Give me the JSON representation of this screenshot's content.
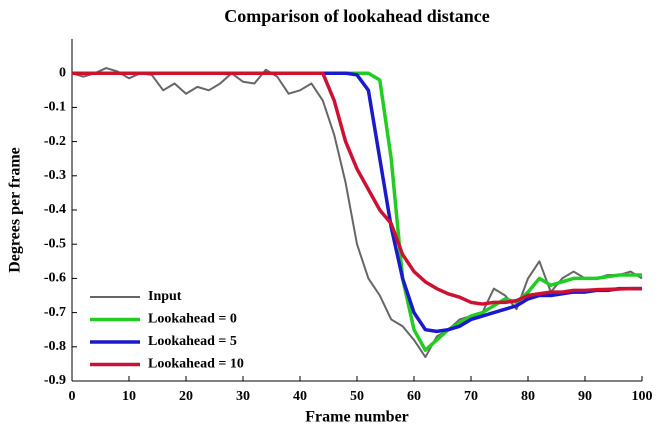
{
  "chart_data": {
    "type": "line",
    "title": "Comparison of lookahead distance",
    "xlabel": "Frame number",
    "ylabel": "Degrees per frame",
    "x": [
      0,
      2,
      4,
      6,
      8,
      10,
      12,
      14,
      16,
      18,
      20,
      22,
      24,
      26,
      28,
      30,
      32,
      34,
      36,
      38,
      40,
      42,
      44,
      46,
      48,
      50,
      52,
      54,
      56,
      58,
      60,
      62,
      64,
      66,
      68,
      70,
      72,
      74,
      76,
      78,
      80,
      82,
      84,
      86,
      88,
      90,
      92,
      94,
      96,
      98,
      100
    ],
    "series": [
      {
        "name": "Input",
        "color": "#666666",
        "values": [
          0,
          -0.01,
          0,
          0.015,
          0.005,
          -0.015,
          0,
          -0.005,
          -0.05,
          -0.03,
          -0.06,
          -0.04,
          -0.05,
          -0.03,
          0,
          -0.025,
          -0.03,
          0.01,
          -0.01,
          -0.06,
          -0.05,
          -0.03,
          -0.08,
          -0.18,
          -0.32,
          -0.5,
          -0.6,
          -0.65,
          -0.72,
          -0.74,
          -0.78,
          -0.83,
          -0.77,
          -0.75,
          -0.72,
          -0.71,
          -0.7,
          -0.63,
          -0.65,
          -0.69,
          -0.6,
          -0.55,
          -0.64,
          -0.6,
          -0.58,
          -0.6,
          -0.6,
          -0.59,
          -0.59,
          -0.58,
          -0.6
        ]
      },
      {
        "name": "Lookahead = 0",
        "color": "#22cc22",
        "values": [
          0,
          0,
          0,
          0,
          0,
          0,
          0,
          0,
          0,
          0,
          0,
          0,
          0,
          0,
          0,
          0,
          0,
          0,
          0,
          0,
          0,
          0,
          0,
          0,
          0,
          0,
          0,
          -0.02,
          -0.25,
          -0.6,
          -0.75,
          -0.81,
          -0.78,
          -0.75,
          -0.73,
          -0.71,
          -0.7,
          -0.68,
          -0.66,
          -0.67,
          -0.64,
          -0.6,
          -0.62,
          -0.61,
          -0.6,
          -0.6,
          -0.6,
          -0.595,
          -0.59,
          -0.59,
          -0.59
        ]
      },
      {
        "name": "Lookahead = 5",
        "color": "#1a1acc",
        "values": [
          0,
          0,
          0,
          0,
          0,
          0,
          0,
          0,
          0,
          0,
          0,
          0,
          0,
          0,
          0,
          0,
          0,
          0,
          0,
          0,
          0,
          0,
          0,
          0,
          0,
          -0.005,
          -0.05,
          -0.25,
          -0.45,
          -0.6,
          -0.7,
          -0.75,
          -0.755,
          -0.75,
          -0.74,
          -0.72,
          -0.71,
          -0.7,
          -0.69,
          -0.68,
          -0.66,
          -0.65,
          -0.65,
          -0.645,
          -0.64,
          -0.64,
          -0.635,
          -0.635,
          -0.63,
          -0.63,
          -0.63
        ]
      },
      {
        "name": "Lookahead = 10",
        "color": "#cc1133",
        "values": [
          0,
          0,
          0,
          0,
          0,
          0,
          0,
          0,
          0,
          0,
          0,
          0,
          0,
          0,
          0,
          0,
          0,
          0,
          0,
          0,
          0,
          0,
          0,
          -0.08,
          -0.2,
          -0.28,
          -0.34,
          -0.4,
          -0.44,
          -0.53,
          -0.58,
          -0.61,
          -0.63,
          -0.645,
          -0.655,
          -0.67,
          -0.675,
          -0.67,
          -0.67,
          -0.665,
          -0.65,
          -0.645,
          -0.64,
          -0.64,
          -0.635,
          -0.635,
          -0.633,
          -0.632,
          -0.631,
          -0.63,
          -0.63
        ]
      }
    ],
    "xlim": [
      0,
      100
    ],
    "xticks": [
      0,
      10,
      20,
      30,
      40,
      50,
      60,
      70,
      80,
      90,
      100
    ],
    "ylim": [
      -0.9,
      0.1
    ],
    "yticks": [
      0,
      -0.1,
      -0.2,
      -0.3,
      -0.4,
      -0.5,
      -0.6,
      -0.7,
      -0.8,
      -0.9
    ],
    "grid": false,
    "legend": "lower left"
  }
}
